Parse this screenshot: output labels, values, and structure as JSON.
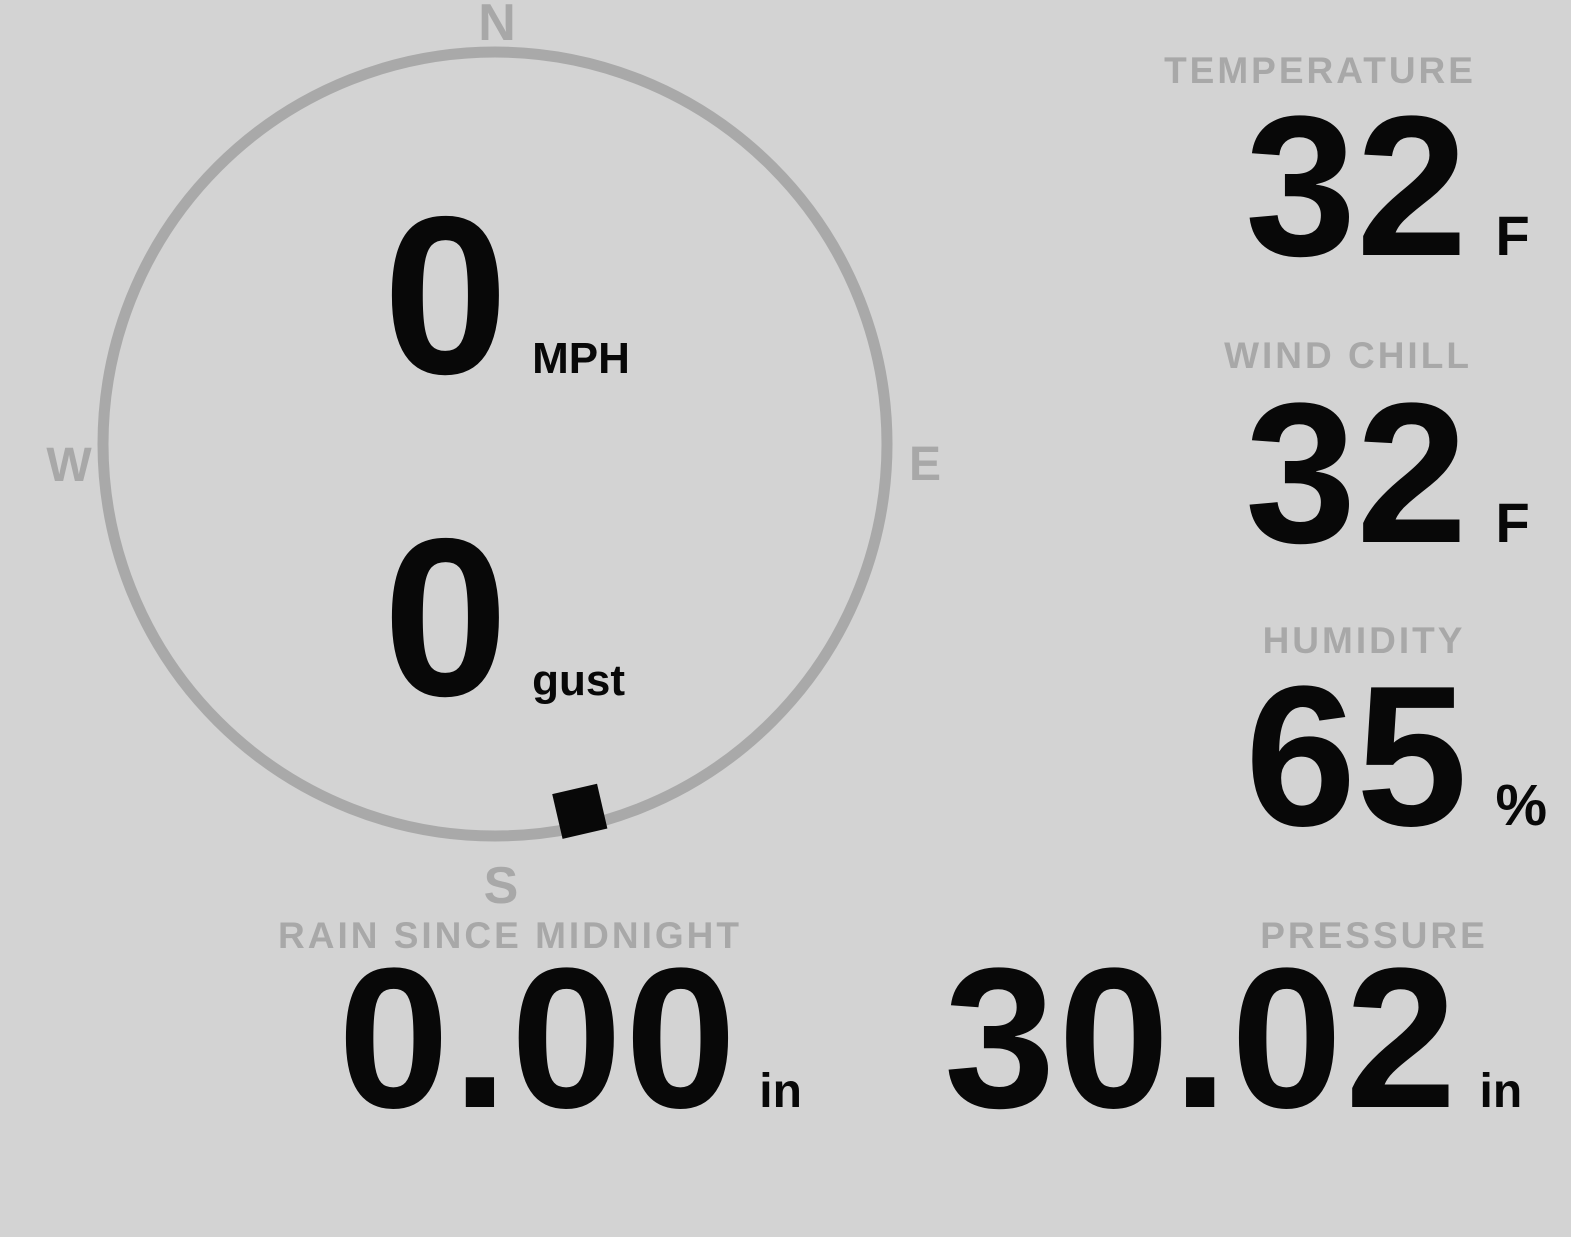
{
  "colors": {
    "background": "#d3d3d3",
    "muted": "#a8a8a8",
    "circle": "#a9a9a9",
    "ink": "#080808"
  },
  "wind_gauge": {
    "compass_labels": {
      "north": "N",
      "east": "E",
      "south": "S",
      "west": "W"
    },
    "speed": {
      "value": "0",
      "unit": "MPH"
    },
    "gust": {
      "value": "0",
      "unit": "gust"
    },
    "direction_deg": 167
  },
  "metrics": {
    "temperature": {
      "label": "TEMPERATURE",
      "value": "32",
      "unit": "F"
    },
    "wind_chill": {
      "label": "WIND CHILL",
      "value": "32",
      "unit": "F"
    },
    "humidity": {
      "label": "HUMIDITY",
      "value": "65",
      "unit": "%"
    },
    "rain_since_midnight": {
      "label": "RAIN SINCE MIDNIGHT",
      "value": "0.00",
      "unit": "in"
    },
    "pressure": {
      "label": "PRESSURE",
      "value": "30.02",
      "unit": "in"
    }
  }
}
